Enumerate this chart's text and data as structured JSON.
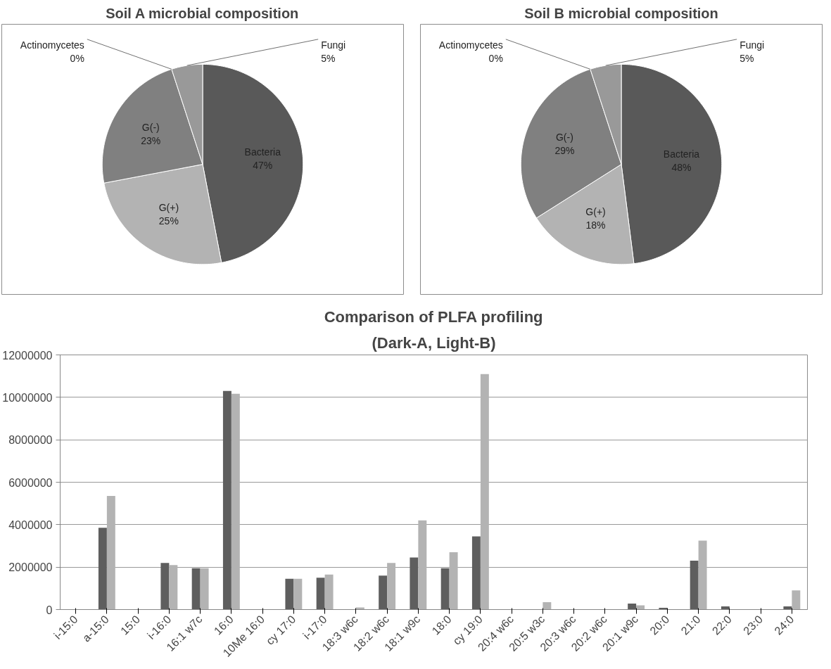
{
  "chart_data": [
    {
      "type": "pie",
      "title": "Soil A microbial composition",
      "categories": [
        "Bacteria",
        "G(+)",
        "G(-)",
        "Actinomycetes",
        "Fungi"
      ],
      "values": [
        47,
        25,
        23,
        0,
        5
      ],
      "value_labels": [
        "47%",
        "25%",
        "23%",
        "0%",
        "5%"
      ],
      "colors": [
        "#595959",
        "#b3b3b3",
        "#808080",
        "#6e6e6e",
        "#999999"
      ],
      "data_labels": true,
      "legend": false
    },
    {
      "type": "pie",
      "title": "Soil B microbial composition",
      "categories": [
        "Bacteria",
        "G(+)",
        "G(-)",
        "Actinomycetes",
        "Fungi"
      ],
      "values": [
        48,
        18,
        29,
        0,
        5
      ],
      "value_labels": [
        "48%",
        "18%",
        "29%",
        "0%",
        "5%"
      ],
      "colors": [
        "#595959",
        "#b3b3b3",
        "#808080",
        "#6e6e6e",
        "#999999"
      ],
      "data_labels": true,
      "legend": false
    },
    {
      "type": "bar",
      "title": "Comparison of PLFA profiling",
      "subtitle": "(Dark-A, Light-B)",
      "categories": [
        "i-15:0",
        "a-15:0",
        "15:0",
        "i-16:0",
        "16:1 w7c",
        "16:0",
        "10Me 16:0",
        "cy 17:0",
        "i-17:0",
        "18:3 w6c",
        "18:2 w6c",
        "18:1 w9c",
        "18:0",
        "cy 19:0",
        "20:4 w6c",
        "20:5 w3c",
        "20:3 w6c",
        "20:2 w6c",
        "20:1 w9c",
        "20:0",
        "21:0",
        "22:0",
        "23:0",
        "24:0"
      ],
      "series": [
        {
          "color": "#5e5e5e",
          "values": [
            0,
            3850000,
            0,
            2200000,
            1950000,
            10300000,
            0,
            1450000,
            1500000,
            0,
            1600000,
            2450000,
            1950000,
            3450000,
            0,
            0,
            0,
            0,
            280000,
            80000,
            2300000,
            150000,
            0,
            150000
          ]
        },
        {
          "color": "#b3b3b3",
          "values": [
            0,
            5350000,
            0,
            2100000,
            1950000,
            10170000,
            0,
            1450000,
            1650000,
            100000,
            2200000,
            4200000,
            2700000,
            11100000,
            0,
            350000,
            0,
            0,
            200000,
            0,
            3250000,
            0,
            0,
            900000
          ]
        }
      ],
      "ylim": [
        0,
        12000000
      ],
      "yticks": [
        0,
        2000000,
        4000000,
        6000000,
        8000000,
        10000000,
        12000000
      ],
      "grid": "y",
      "legend": false
    }
  ]
}
